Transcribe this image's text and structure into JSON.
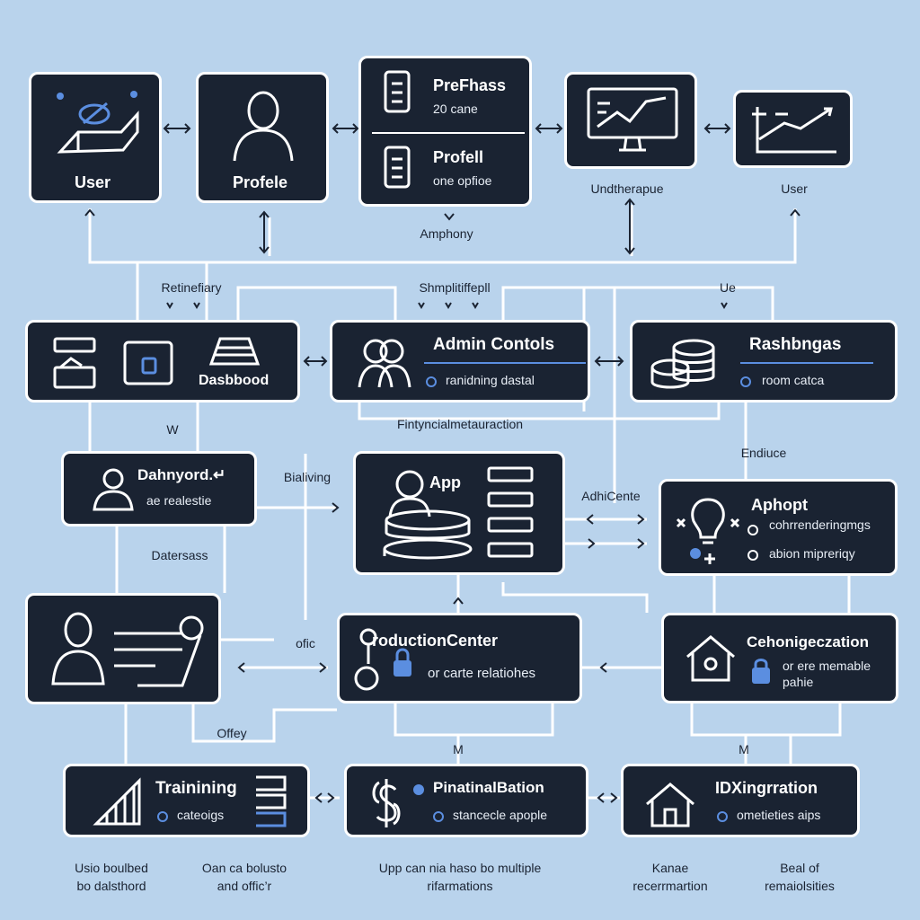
{
  "nodes": {
    "user": {
      "title": "User"
    },
    "profile": {
      "title": "Profele"
    },
    "prefhass": {
      "title": "PreFhass",
      "subtitle": "20 cane",
      "title2": "Profell",
      "subtitle2": "one opfioe"
    },
    "dashboard": {
      "title": "Dasbbood"
    },
    "admin": {
      "title": "Admin Contols",
      "subtitle": "ranidning dastal"
    },
    "rashbngas": {
      "title": "Rashbngas",
      "subtitle": "room catca"
    },
    "dahnyord": {
      "title": "Dahnyord.↵",
      "subtitle": "ae realestie"
    },
    "app": {
      "title": "App"
    },
    "aphopt": {
      "title": "Aphopt",
      "subtitle": "cohrrenderingmgs",
      "subtitle2": "abion mipreriqy"
    },
    "production": {
      "title": "roductionCenter",
      "subtitle": "or carte relatiohes"
    },
    "cehonig": {
      "title": "Cehonigeczation",
      "subtitle": "or ere memable",
      "subtitle2": "pahie"
    },
    "training": {
      "title": "Trainining",
      "subtitle": "cateoigs"
    },
    "pinatinal": {
      "title": "PinatinalBation",
      "subtitle": "stancecle apople"
    },
    "idx": {
      "title": "IDXingrration",
      "subtitle": "ometieties aips"
    }
  },
  "labels": {
    "unditherapue": "Undtherapue",
    "user_right": "User",
    "amphony": "Amphony",
    "retinefiary": "Retinefiary",
    "shmplitiffepll": "Shmplitiffepll",
    "ue": "Ue",
    "w": "W",
    "fintyncial": "Fintyncialmetauraction",
    "endiuce": "Endiuce",
    "bialiving": "Bialiving",
    "adhicente": "AdhiCente",
    "datersass": "Datersass",
    "ofic": "ofic",
    "offey": "Offey",
    "m1": "M",
    "m2": "M",
    "bottom1": "Usio boulbed\nbo dalsthord",
    "bottom2": "Oan ca bolusto\nand offic’r",
    "bottom3": "Upp can nia haso bo multiple\nrifarmations",
    "bottom4": "Kanae\nrecerrmartion",
    "bottom5": "Beal of\nremaiolsities"
  },
  "colors": {
    "background": "#b9d3ec",
    "node_fill": "#1a2332",
    "node_border": "#ffffff",
    "accent": "#5b8ee0"
  }
}
